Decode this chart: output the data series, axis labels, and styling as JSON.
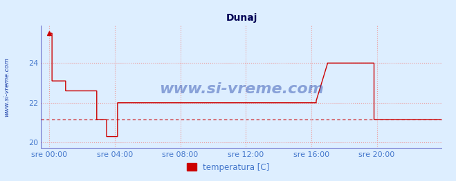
{
  "title": "Dunaj",
  "ylabel_text": "www.si-vreme.com",
  "legend_label": "temperatura [C]",
  "legend_color": "#cc0000",
  "background_color": "#ddeeff",
  "plot_bg_color": "#ddeeff",
  "line_color": "#cc0000",
  "axis_color": "#4444bb",
  "grid_color": "#ee9999",
  "tick_label_color": "#4477cc",
  "title_color": "#000055",
  "watermark_color": "#2244aa",
  "ylim": [
    19.7,
    25.9
  ],
  "yticks": [
    20,
    22,
    24
  ],
  "xlabel_ticks": [
    "sre 00:00",
    "sre 04:00",
    "sre 08:00",
    "sre 12:00",
    "sre 16:00",
    "sre 20:00"
  ],
  "xtick_positions": [
    0,
    4,
    8,
    12,
    16,
    20
  ],
  "xlim": [
    -0.5,
    24.0
  ],
  "time_points": [
    0.0,
    0.17,
    0.17,
    1.0,
    1.0,
    1.5,
    1.5,
    2.9,
    2.9,
    3.5,
    3.5,
    4.17,
    4.17,
    7.0,
    7.0,
    16.3,
    16.3,
    17.0,
    17.0,
    19.83,
    19.83,
    20.0,
    20.0,
    23.9
  ],
  "temp_values": [
    25.5,
    25.5,
    23.1,
    23.1,
    22.6,
    22.6,
    22.6,
    22.6,
    21.15,
    21.15,
    20.3,
    20.3,
    22.0,
    22.0,
    22.0,
    22.0,
    22.1,
    24.0,
    24.0,
    24.0,
    21.15,
    21.15,
    21.15,
    21.15
  ],
  "avg_line_value": 21.15,
  "avg_line_color": "#cc0000",
  "figsize": [
    6.59,
    2.62
  ],
  "dpi": 100
}
